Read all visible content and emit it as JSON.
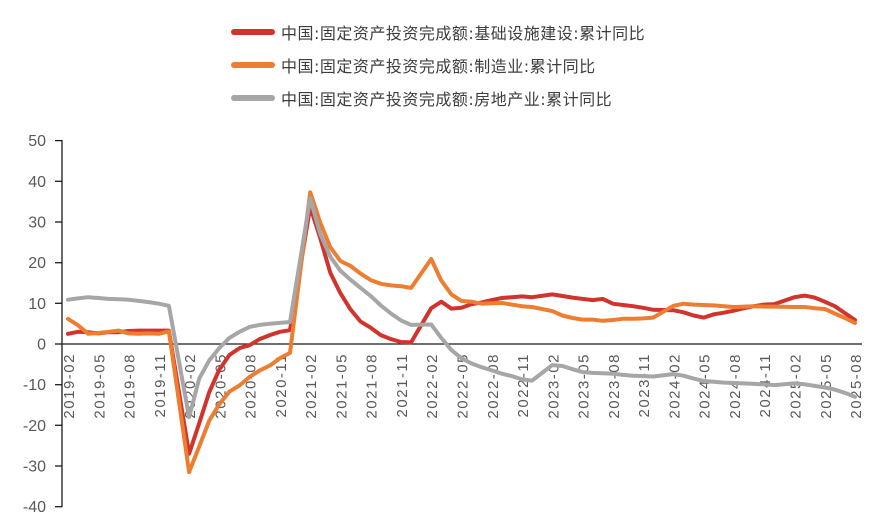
{
  "chart_data": {
    "type": "line",
    "title": "",
    "legend_position": "top",
    "grid": false,
    "axis_color": "#1a1a1a",
    "ylim": [
      -40,
      50
    ],
    "y_ticks": [
      50,
      40,
      30,
      20,
      10,
      0,
      -10,
      -20,
      -30,
      -40
    ],
    "x_ticks": [
      "2019-02",
      "2019-05",
      "2019-08",
      "2019-11",
      "2020-02",
      "2020-05",
      "2020-08",
      "2020-11",
      "2021-02",
      "2021-05",
      "2021-08",
      "2021-11",
      "2022-02",
      "2022-05",
      "2022-08",
      "2022-11",
      "2023-02",
      "2023-05",
      "2023-08",
      "2023-11",
      "2024-02",
      "2024-05",
      "2024-08",
      "2024-11",
      "2025-02",
      "2025-05",
      "2025-08"
    ],
    "x": [
      "2019-02",
      "2019-03",
      "2019-04",
      "2019-05",
      "2019-06",
      "2019-07",
      "2019-08",
      "2019-09",
      "2019-10",
      "2019-11",
      "2019-12",
      "2020-02",
      "2020-03",
      "2020-04",
      "2020-05",
      "2020-06",
      "2020-07",
      "2020-08",
      "2020-09",
      "2020-10",
      "2020-11",
      "2020-12",
      "2021-02",
      "2021-03",
      "2021-04",
      "2021-05",
      "2021-06",
      "2021-07",
      "2021-08",
      "2021-09",
      "2021-10",
      "2021-11",
      "2021-12",
      "2022-02",
      "2022-03",
      "2022-04",
      "2022-05",
      "2022-06",
      "2022-07",
      "2022-08",
      "2022-09",
      "2022-10",
      "2022-11",
      "2022-12",
      "2023-02",
      "2023-03",
      "2023-04",
      "2023-05",
      "2023-06",
      "2023-07",
      "2023-08",
      "2023-09",
      "2023-10",
      "2023-11",
      "2023-12",
      "2024-02",
      "2024-03",
      "2024-04",
      "2024-05",
      "2024-06",
      "2024-07",
      "2024-08",
      "2024-09",
      "2024-10",
      "2024-11",
      "2024-12",
      "2025-02",
      "2025-03",
      "2025-04",
      "2025-05",
      "2025-06",
      "2025-07",
      "2025-08"
    ],
    "series": [
      {
        "id": "infrastructure",
        "name": "中国:固定资产投资完成额:基础设施建设:累计同比",
        "color": "#d0342c",
        "values": [
          2.5,
          3.0,
          2.9,
          2.6,
          2.9,
          2.9,
          3.2,
          3.3,
          3.3,
          3.3,
          3.3,
          -27.0,
          -19.5,
          -11.8,
          -6.3,
          -2.7,
          -1.0,
          -0.3,
          1.2,
          2.2,
          3.0,
          3.4,
          33.7,
          26.0,
          17.5,
          12.5,
          8.5,
          5.5,
          4.0,
          2.2,
          1.2,
          0.5,
          0.4,
          8.8,
          10.4,
          8.7,
          8.9,
          9.8,
          10.2,
          10.8,
          11.3,
          11.5,
          11.7,
          11.5,
          12.2,
          11.8,
          11.4,
          11.1,
          10.8,
          11.1,
          9.9,
          9.6,
          9.3,
          8.9,
          8.4,
          8.3,
          7.8,
          7.0,
          6.5,
          7.3,
          7.7,
          8.2,
          8.8,
          9.3,
          9.7,
          9.8,
          11.5,
          11.9,
          11.4,
          10.4,
          9.3,
          7.6,
          5.9
        ]
      },
      {
        "id": "manufacturing",
        "name": "中国:固定资产投资完成额:制造业:累计同比",
        "color": "#ed7d31",
        "values": [
          6.2,
          4.6,
          2.5,
          2.7,
          3.0,
          3.3,
          2.6,
          2.5,
          2.6,
          2.5,
          3.1,
          -31.5,
          -25.2,
          -18.8,
          -14.8,
          -11.7,
          -10.2,
          -8.1,
          -6.5,
          -5.3,
          -3.5,
          -2.2,
          37.3,
          29.8,
          23.8,
          20.4,
          19.2,
          17.3,
          15.7,
          14.8,
          14.4,
          14.2,
          13.8,
          20.9,
          15.6,
          12.2,
          10.6,
          10.4,
          9.9,
          10.0,
          10.1,
          9.7,
          9.3,
          9.1,
          8.1,
          7.0,
          6.4,
          6.0,
          6.0,
          5.7,
          5.9,
          6.2,
          6.2,
          6.3,
          6.5,
          9.4,
          9.9,
          9.7,
          9.6,
          9.5,
          9.3,
          9.1,
          9.2,
          9.3,
          9.2,
          9.2,
          9.1,
          9.1,
          8.8,
          8.6,
          7.5,
          6.4,
          5.2
        ]
      },
      {
        "id": "real-estate",
        "name": "中国:固定资产投资完成额:房地产业:累计同比",
        "color": "#a6a6a6",
        "values": [
          10.9,
          11.2,
          11.5,
          11.3,
          11.1,
          11.0,
          10.9,
          10.6,
          10.3,
          9.9,
          9.4,
          -18.0,
          -8.5,
          -4.0,
          -1.0,
          1.5,
          3.0,
          4.2,
          4.7,
          5.0,
          5.2,
          5.4,
          35.8,
          27.0,
          21.5,
          18.0,
          15.8,
          13.8,
          11.8,
          9.5,
          7.5,
          5.8,
          4.7,
          4.8,
          1.5,
          -1.5,
          -3.5,
          -4.8,
          -5.7,
          -6.5,
          -7.3,
          -7.9,
          -8.7,
          -9.0,
          -5.2,
          -5.4,
          -6.2,
          -6.9,
          -7.1,
          -7.2,
          -7.3,
          -7.6,
          -7.8,
          -7.9,
          -8.0,
          -7.4,
          -7.8,
          -8.5,
          -9.1,
          -9.3,
          -9.5,
          -9.6,
          -9.7,
          -9.8,
          -9.9,
          -10.1,
          -9.7,
          -9.9,
          -10.3,
          -10.7,
          -11.2,
          -12.0,
          -13.0
        ]
      }
    ]
  }
}
